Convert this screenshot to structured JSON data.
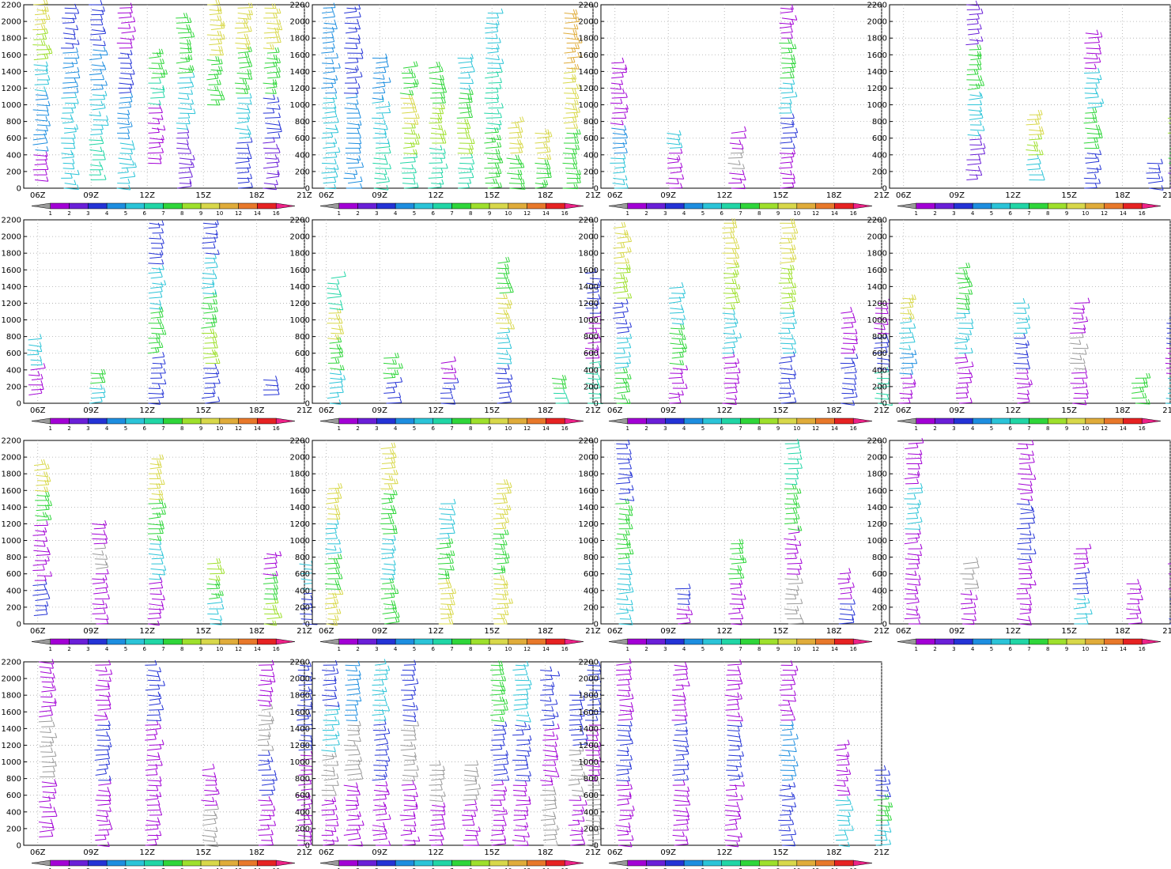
{
  "chart_data": {
    "type": "wind-profiler-barbs",
    "panel_count": 15,
    "y_axis": {
      "min": 0,
      "max": 2200,
      "ticks": [
        0,
        200,
        400,
        600,
        800,
        1000,
        1200,
        1400,
        1600,
        1800,
        2000,
        2200
      ]
    },
    "x_axis": {
      "labels": [
        "06Z",
        "09Z",
        "12Z",
        "15Z",
        "18Z",
        "21Z"
      ]
    },
    "grid": "dotted",
    "colorbar": {
      "labels": [
        "1",
        "2",
        "3",
        "4",
        "5",
        "6",
        "7",
        "8",
        "9",
        "10",
        "12",
        "14",
        "16"
      ],
      "colors": [
        "#9a9a9a",
        "#a300d6",
        "#6a1fd8",
        "#2433d6",
        "#1d8ee0",
        "#2bc4d8",
        "#21d6a6",
        "#2fd63a",
        "#9ee02c",
        "#d8d84a",
        "#e0ac3a",
        "#e8782a",
        "#e62222",
        "#ee2288"
      ]
    },
    "panels": [
      {
        "profiles": [
          {
            "x": 0.04,
            "ylo": 100,
            "yhi": 2200,
            "c": [
              1,
              4,
              4,
              5,
              8,
              9
            ]
          },
          {
            "x": 0.14,
            "ylo": 0,
            "yhi": 2200,
            "c": [
              5,
              5,
              4,
              3
            ]
          },
          {
            "x": 0.24,
            "ylo": 100,
            "yhi": 2200,
            "c": [
              6,
              5,
              4,
              3
            ]
          },
          {
            "x": 0.34,
            "ylo": 0,
            "yhi": 2200,
            "c": [
              5,
              4,
              3,
              1
            ]
          },
          {
            "x": 0.45,
            "ylo": 300,
            "yhi": 1650,
            "c": [
              1,
              1,
              6,
              7
            ]
          },
          {
            "x": 0.55,
            "ylo": 0,
            "yhi": 2050,
            "c": [
              2,
              5,
              7
            ]
          },
          {
            "x": 0.66,
            "ylo": 1000,
            "yhi": 2200,
            "c": [
              7,
              9
            ]
          },
          {
            "x": 0.76,
            "ylo": 0,
            "yhi": 2200,
            "c": [
              3,
              5,
              7,
              9
            ]
          },
          {
            "x": 0.86,
            "ylo": 0,
            "yhi": 2200,
            "c": [
              2,
              3,
              7,
              9
            ]
          }
        ]
      },
      {
        "profiles": [
          {
            "x": 0.04,
            "ylo": 0,
            "yhi": 2200,
            "c": [
              5,
              4
            ]
          },
          {
            "x": 0.12,
            "ylo": 0,
            "yhi": 2200,
            "c": [
              4,
              3
            ]
          },
          {
            "x": 0.22,
            "ylo": 0,
            "yhi": 1600,
            "c": [
              6,
              5,
              4
            ]
          },
          {
            "x": 0.32,
            "ylo": 0,
            "yhi": 1450,
            "c": [
              6,
              8,
              9,
              7
            ]
          },
          {
            "x": 0.42,
            "ylo": 0,
            "yhi": 1450,
            "c": [
              6,
              8,
              7
            ]
          },
          {
            "x": 0.52,
            "ylo": 0,
            "yhi": 1600,
            "c": [
              6,
              8,
              7,
              5
            ]
          },
          {
            "x": 0.62,
            "ylo": 0,
            "yhi": 2100,
            "c": [
              7,
              6,
              5
            ]
          },
          {
            "x": 0.7,
            "ylo": 0,
            "yhi": 800,
            "c": [
              7,
              9
            ]
          },
          {
            "x": 0.8,
            "ylo": 0,
            "yhi": 700,
            "c": [
              7,
              9
            ]
          },
          {
            "x": 0.9,
            "ylo": 0,
            "yhi": 2100,
            "c": [
              7,
              9,
              10
            ]
          }
        ]
      },
      {
        "profiles": [
          {
            "x": 0.04,
            "ylo": 0,
            "yhi": 1500,
            "c": [
              5,
              4,
              1,
              1
            ]
          },
          {
            "x": 0.24,
            "ylo": 0,
            "yhi": 700,
            "c": [
              1,
              1,
              5
            ]
          },
          {
            "x": 0.46,
            "ylo": 0,
            "yhi": 700,
            "c": [
              1,
              0,
              1
            ]
          },
          {
            "x": 0.64,
            "ylo": 0,
            "yhi": 2200,
            "c": [
              1,
              3,
              5,
              7,
              1
            ]
          }
        ]
      },
      {
        "profiles": [
          {
            "x": 0.28,
            "ylo": 100,
            "yhi": 2200,
            "c": [
              2,
              5,
              7,
              2
            ]
          },
          {
            "x": 0.49,
            "ylo": 100,
            "yhi": 900,
            "c": [
              5,
              8,
              9
            ]
          },
          {
            "x": 0.7,
            "ylo": 0,
            "yhi": 1900,
            "c": [
              3,
              7,
              5,
              1
            ]
          },
          {
            "x": 0.92,
            "ylo": 0,
            "yhi": 300,
            "c": [
              3
            ]
          },
          {
            "x": 1.0,
            "ylo": 0,
            "yhi": 900,
            "c": [
              2,
              7,
              8
            ]
          }
        ]
      },
      {
        "profiles": [
          {
            "x": 0.02,
            "ylo": 100,
            "yhi": 800,
            "c": [
              1,
              5
            ]
          },
          {
            "x": 0.24,
            "ylo": 0,
            "yhi": 400,
            "c": [
              5,
              7
            ]
          },
          {
            "x": 0.45,
            "ylo": 0,
            "yhi": 2200,
            "c": [
              3,
              7,
              5,
              3
            ]
          },
          {
            "x": 0.64,
            "ylo": 0,
            "yhi": 2200,
            "c": [
              3,
              8,
              7,
              5,
              3
            ]
          },
          {
            "x": 0.86,
            "ylo": 100,
            "yhi": 300,
            "c": [
              3
            ]
          }
        ]
      },
      {
        "profiles": [
          {
            "x": 0.06,
            "ylo": 0,
            "yhi": 1500,
            "c": [
              5,
              7,
              9,
              6
            ]
          },
          {
            "x": 0.26,
            "ylo": 0,
            "yhi": 550,
            "c": [
              3,
              7
            ]
          },
          {
            "x": 0.46,
            "ylo": 0,
            "yhi": 500,
            "c": [
              3,
              1
            ]
          },
          {
            "x": 0.66,
            "ylo": 0,
            "yhi": 1700,
            "c": [
              3,
              5,
              9,
              7
            ]
          },
          {
            "x": 0.86,
            "ylo": 0,
            "yhi": 300,
            "c": [
              6,
              7
            ]
          },
          {
            "x": 0.98,
            "ylo": 0,
            "yhi": 1600,
            "c": [
              6,
              1,
              3
            ]
          }
        ]
      },
      {
        "profiles": [
          {
            "x": 0.05,
            "ylo": 0,
            "yhi": 2100,
            "c": [
              7,
              5,
              3,
              8,
              9
            ]
          },
          {
            "x": 0.25,
            "ylo": 0,
            "yhi": 1400,
            "c": [
              1,
              7,
              5
            ]
          },
          {
            "x": 0.44,
            "ylo": 0,
            "yhi": 2200,
            "c": [
              1,
              5,
              8,
              9
            ]
          },
          {
            "x": 0.64,
            "ylo": 0,
            "yhi": 2200,
            "c": [
              3,
              5,
              8,
              9
            ]
          },
          {
            "x": 0.86,
            "ylo": 0,
            "yhi": 1100,
            "c": [
              3,
              1
            ]
          },
          {
            "x": 0.98,
            "ylo": 0,
            "yhi": 1250,
            "c": [
              6,
              3,
              1
            ]
          }
        ]
      },
      {
        "profiles": [
          {
            "x": 0.04,
            "ylo": 0,
            "yhi": 1300,
            "c": [
              1,
              4,
              5,
              9
            ]
          },
          {
            "x": 0.24,
            "ylo": 0,
            "yhi": 1650,
            "c": [
              1,
              5,
              7
            ]
          },
          {
            "x": 0.45,
            "ylo": 0,
            "yhi": 1200,
            "c": [
              1,
              3,
              5
            ]
          },
          {
            "x": 0.65,
            "ylo": 0,
            "yhi": 1250,
            "c": [
              1,
              0,
              1
            ]
          },
          {
            "x": 0.87,
            "ylo": 0,
            "yhi": 300,
            "c": [
              7
            ]
          },
          {
            "x": 0.99,
            "ylo": 0,
            "yhi": 1050,
            "c": [
              5,
              1,
              3
            ]
          }
        ]
      },
      {
        "profiles": [
          {
            "x": 0.04,
            "ylo": 100,
            "yhi": 1950,
            "c": [
              3,
              1,
              1,
              7,
              9
            ]
          },
          {
            "x": 0.25,
            "ylo": 0,
            "yhi": 1250,
            "c": [
              1,
              1,
              0,
              1
            ]
          },
          {
            "x": 0.45,
            "ylo": 0,
            "yhi": 2000,
            "c": [
              1,
              5,
              7,
              9
            ]
          },
          {
            "x": 0.66,
            "ylo": 0,
            "yhi": 750,
            "c": [
              5,
              7,
              8
            ]
          },
          {
            "x": 0.86,
            "ylo": 0,
            "yhi": 850,
            "c": [
              8,
              7,
              1
            ]
          },
          {
            "x": 0.99,
            "ylo": 0,
            "yhi": 750,
            "c": [
              3,
              5
            ]
          }
        ]
      },
      {
        "profiles": [
          {
            "x": 0.05,
            "ylo": 0,
            "yhi": 1650,
            "c": [
              9,
              7,
              5,
              9
            ]
          },
          {
            "x": 0.25,
            "ylo": 0,
            "yhi": 2100,
            "c": [
              7,
              5,
              7,
              9
            ]
          },
          {
            "x": 0.45,
            "ylo": 0,
            "yhi": 1450,
            "c": [
              9,
              7,
              5
            ]
          },
          {
            "x": 0.65,
            "ylo": 0,
            "yhi": 1700,
            "c": [
              9,
              7,
              9
            ]
          }
        ]
      },
      {
        "profiles": [
          {
            "x": 0.06,
            "ylo": 0,
            "yhi": 2200,
            "c": [
              5,
              7,
              3
            ]
          },
          {
            "x": 0.27,
            "ylo": 0,
            "yhi": 450,
            "c": [
              1,
              3
            ]
          },
          {
            "x": 0.46,
            "ylo": 0,
            "yhi": 1000,
            "c": [
              1,
              7
            ]
          },
          {
            "x": 0.66,
            "ylo": 0,
            "yhi": 2200,
            "c": [
              0,
              1,
              7,
              6
            ]
          },
          {
            "x": 0.85,
            "ylo": 0,
            "yhi": 600,
            "c": [
              3,
              1
            ]
          }
        ]
      },
      {
        "profiles": [
          {
            "x": 0.06,
            "ylo": 0,
            "yhi": 2200,
            "c": [
              1,
              1,
              5,
              1
            ]
          },
          {
            "x": 0.26,
            "ylo": 0,
            "yhi": 750,
            "c": [
              1,
              0
            ]
          },
          {
            "x": 0.46,
            "ylo": 0,
            "yhi": 2200,
            "c": [
              1,
              3,
              1
            ]
          },
          {
            "x": 0.66,
            "ylo": 0,
            "yhi": 950,
            "c": [
              5,
              3,
              1
            ]
          },
          {
            "x": 0.85,
            "ylo": 0,
            "yhi": 500,
            "c": [
              1
            ]
          },
          {
            "x": 1.0,
            "ylo": 0,
            "yhi": 800,
            "c": [
              3,
              1
            ]
          }
        ]
      },
      {
        "profiles": [
          {
            "x": 0.06,
            "ylo": 100,
            "yhi": 2200,
            "c": [
              1,
              0,
              1
            ]
          },
          {
            "x": 0.26,
            "ylo": 0,
            "yhi": 2200,
            "c": [
              1,
              3,
              1
            ]
          },
          {
            "x": 0.44,
            "ylo": 0,
            "yhi": 2200,
            "c": [
              1,
              1,
              3
            ]
          },
          {
            "x": 0.64,
            "ylo": 0,
            "yhi": 950,
            "c": [
              0,
              1
            ]
          },
          {
            "x": 0.84,
            "ylo": 0,
            "yhi": 2200,
            "c": [
              1,
              3,
              0,
              1
            ]
          },
          {
            "x": 0.98,
            "ylo": 0,
            "yhi": 2200,
            "c": [
              1,
              3
            ]
          }
        ]
      },
      {
        "profiles": [
          {
            "x": 0.04,
            "ylo": 0,
            "yhi": 2200,
            "c": [
              1,
              0,
              5,
              3
            ]
          },
          {
            "x": 0.12,
            "ylo": 0,
            "yhi": 2200,
            "c": [
              1,
              0,
              4
            ]
          },
          {
            "x": 0.22,
            "ylo": 0,
            "yhi": 2200,
            "c": [
              1,
              3,
              5
            ]
          },
          {
            "x": 0.32,
            "ylo": 0,
            "yhi": 2200,
            "c": [
              1,
              0,
              3
            ]
          },
          {
            "x": 0.42,
            "ylo": 0,
            "yhi": 1000,
            "c": [
              1,
              0
            ]
          },
          {
            "x": 0.54,
            "ylo": 0,
            "yhi": 1000,
            "c": [
              1,
              0
            ]
          },
          {
            "x": 0.64,
            "ylo": 0,
            "yhi": 2200,
            "c": [
              1,
              3,
              7
            ]
          },
          {
            "x": 0.72,
            "ylo": 0,
            "yhi": 2200,
            "c": [
              1,
              3,
              5
            ]
          },
          {
            "x": 0.82,
            "ylo": 0,
            "yhi": 2100,
            "c": [
              0,
              1,
              3
            ]
          },
          {
            "x": 0.92,
            "ylo": 0,
            "yhi": 1800,
            "c": [
              1,
              0,
              3
            ]
          },
          {
            "x": 0.98,
            "ylo": 0,
            "yhi": 2200,
            "c": [
              0,
              1,
              3
            ]
          }
        ]
      },
      {
        "profiles": [
          {
            "x": 0.06,
            "ylo": 0,
            "yhi": 2200,
            "c": [
              1,
              3,
              1
            ]
          },
          {
            "x": 0.26,
            "ylo": 0,
            "yhi": 2200,
            "c": [
              1,
              3,
              1
            ]
          },
          {
            "x": 0.45,
            "ylo": 0,
            "yhi": 2200,
            "c": [
              1,
              3,
              1
            ]
          },
          {
            "x": 0.64,
            "ylo": 0,
            "yhi": 2200,
            "c": [
              3,
              4,
              1
            ]
          },
          {
            "x": 0.84,
            "ylo": 0,
            "yhi": 1200,
            "c": [
              5,
              1
            ]
          },
          {
            "x": 0.98,
            "ylo": 0,
            "yhi": 900,
            "c": [
              5,
              7,
              3
            ]
          }
        ]
      }
    ]
  }
}
